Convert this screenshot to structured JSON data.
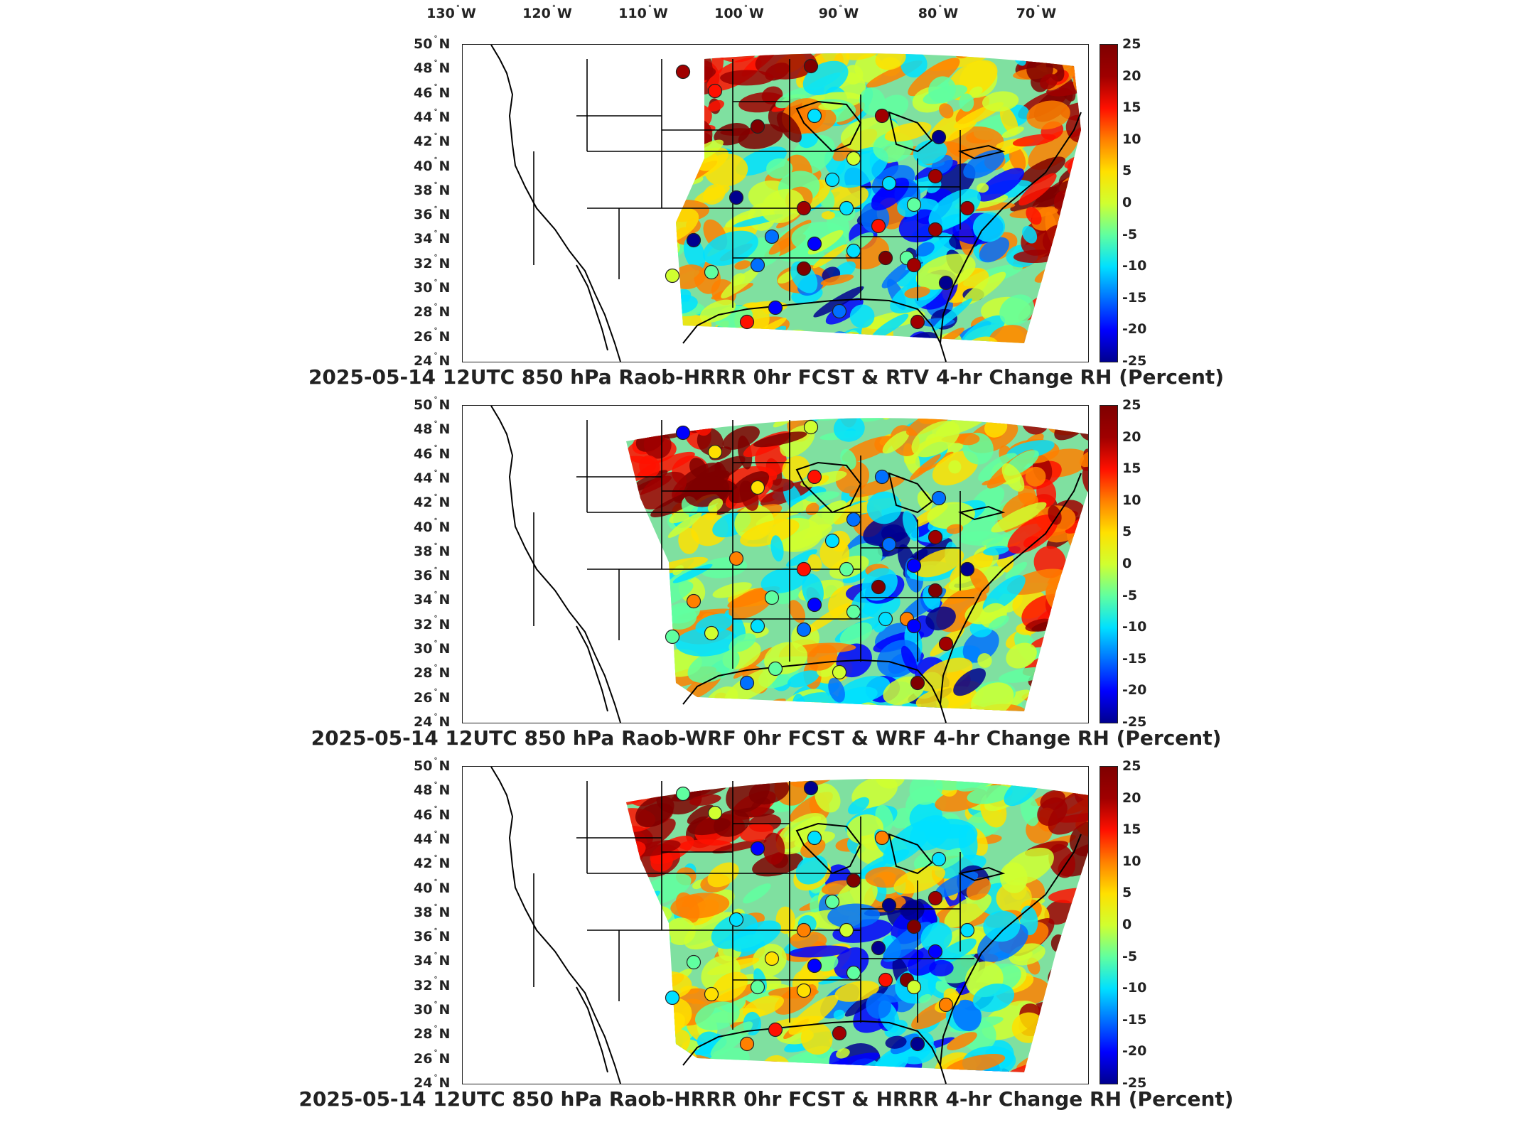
{
  "lon_labels": [
    {
      "deg": "130",
      "dir": "W"
    },
    {
      "deg": "120",
      "dir": "W"
    },
    {
      "deg": "110",
      "dir": "W"
    },
    {
      "deg": "100",
      "dir": "W"
    },
    {
      "deg": "90",
      "dir": "W"
    },
    {
      "deg": "80",
      "dir": "W"
    },
    {
      "deg": "70",
      "dir": "W"
    }
  ],
  "lat_labels": [
    {
      "deg": "50",
      "dir": "N"
    },
    {
      "deg": "48",
      "dir": "N"
    },
    {
      "deg": "46",
      "dir": "N"
    },
    {
      "deg": "44",
      "dir": "N"
    },
    {
      "deg": "42",
      "dir": "N"
    },
    {
      "deg": "40",
      "dir": "N"
    },
    {
      "deg": "38",
      "dir": "N"
    },
    {
      "deg": "36",
      "dir": "N"
    },
    {
      "deg": "34",
      "dir": "N"
    },
    {
      "deg": "32",
      "dir": "N"
    },
    {
      "deg": "30",
      "dir": "N"
    },
    {
      "deg": "28",
      "dir": "N"
    },
    {
      "deg": "26",
      "dir": "N"
    },
    {
      "deg": "24",
      "dir": "N"
    }
  ],
  "colorbar": {
    "ticks": [
      "25",
      "20",
      "15",
      "10",
      "5",
      "0",
      "-5",
      "-10",
      "-15",
      "-20",
      "-25"
    ],
    "colors": [
      "#00008f",
      "#0000ff",
      "#0070ff",
      "#00e0ff",
      "#60ffa0",
      "#d0ff30",
      "#ffe000",
      "#ff8000",
      "#ff1000",
      "#a00000",
      "#7f0000"
    ]
  },
  "panels": [
    {
      "title": "2025-05-14 12UTC 850 hPa Raob-HRRR 0hr FCST & RTV 4-hr Change RH (Percent)"
    },
    {
      "title": "2025-05-14 12UTC 850 hPa Raob-WRF 0hr FCST & WRF 4-hr Change RH (Percent)"
    },
    {
      "title": "2025-05-14 12UTC 850 hPa Raob-HRRR 0hr FCST & HRRR 4-hr Change RH (Percent)"
    }
  ]
}
